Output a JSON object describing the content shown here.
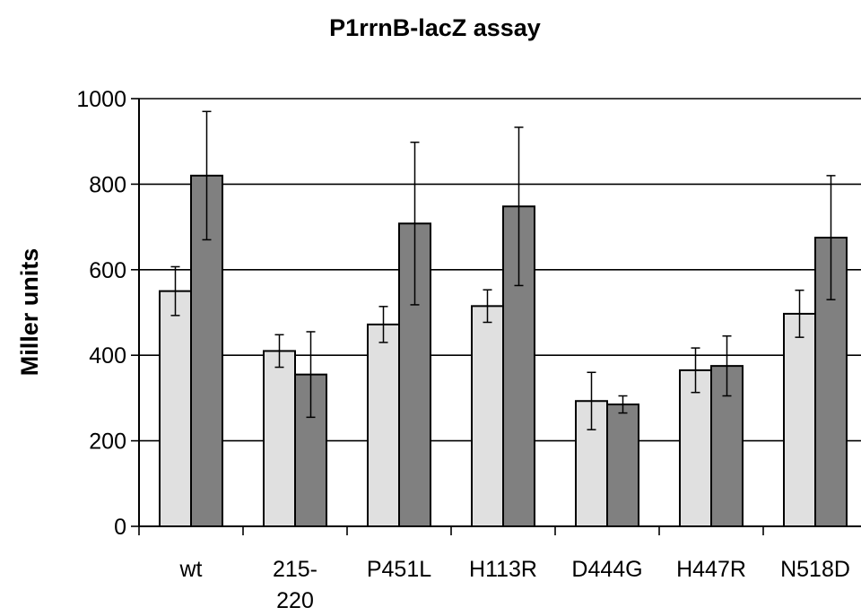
{
  "chart_data": {
    "type": "bar",
    "title": "P1rrnB-lacZ assay",
    "xlabel": "",
    "ylabel": "Miller units",
    "ylim": [
      0,
      1000
    ],
    "yticks": [
      "0",
      "200",
      "400",
      "600",
      "800",
      "1000"
    ],
    "grid": true,
    "legend": "none",
    "categories": [
      "wt",
      "215-\n220",
      "P451L",
      "H113R",
      "D444G",
      "H447R",
      "N518D"
    ],
    "series": [
      {
        "color": "#e0e0e0",
        "values": [
          550,
          410,
          472,
          515,
          293,
          365,
          497
        ],
        "errors": [
          57,
          38,
          42,
          38,
          67,
          52,
          55
        ]
      },
      {
        "color": "#808080",
        "values": [
          820,
          355,
          708,
          748,
          285,
          375,
          675
        ],
        "errors": [
          150,
          100,
          190,
          185,
          20,
          70,
          145
        ]
      }
    ]
  }
}
